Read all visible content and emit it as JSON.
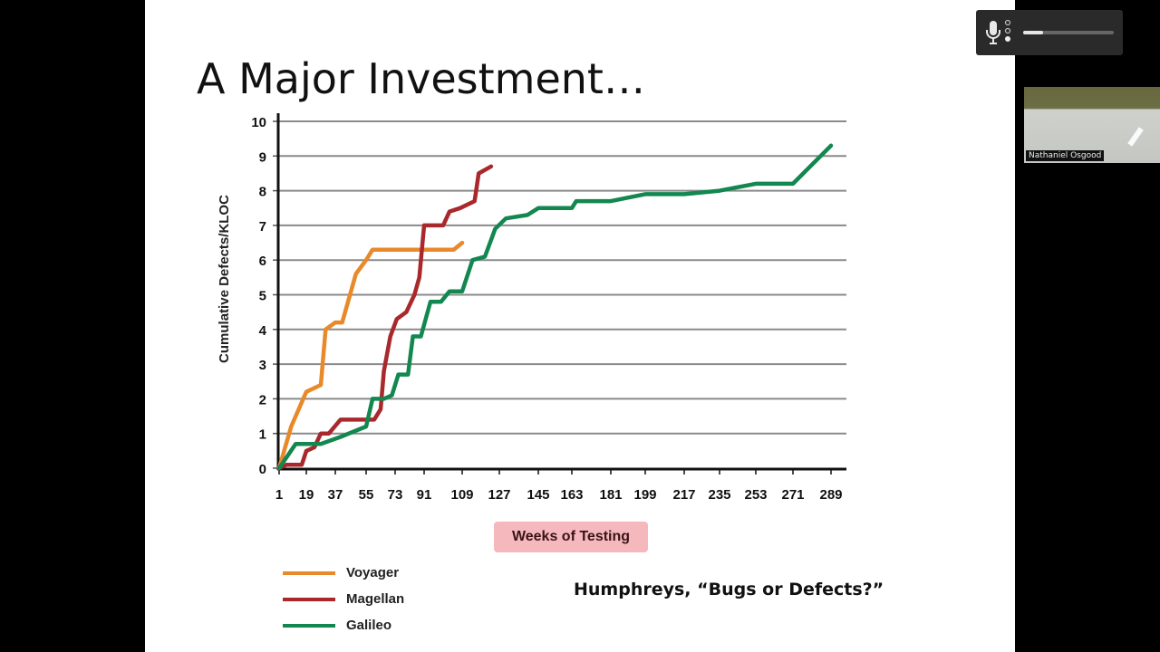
{
  "slide": {
    "title": "A Major Investment…",
    "citation": "Humphreys, “Bugs or Defects?”",
    "x_axis_badge": "Weeks of Testing",
    "badge_color": "#f4b8bd"
  },
  "audio_control": {
    "icon": "microphone-icon",
    "level_percent": 22
  },
  "video_tile": {
    "participant_name": "Nathaniel Osgood"
  },
  "chart_data": {
    "type": "line",
    "title": "",
    "xlabel": "Weeks of Testing",
    "ylabel": "Cumulative Defects/KLOC",
    "ylim": [
      0,
      10
    ],
    "grid": true,
    "legend_position": "bottom-left",
    "x_ticks": [
      1,
      19,
      37,
      55,
      73,
      91,
      109,
      127,
      145,
      163,
      181,
      199,
      217,
      235,
      253,
      271,
      289
    ],
    "y_ticks": [
      0,
      1,
      2,
      3,
      4,
      5,
      6,
      7,
      8,
      9,
      10
    ],
    "legend": [
      "Voyager",
      "Magellan",
      "Galileo"
    ],
    "series": [
      {
        "name": "Voyager",
        "color": "#e8892a",
        "points": [
          [
            1,
            0
          ],
          [
            9,
            1.2
          ],
          [
            19,
            2.2
          ],
          [
            28,
            2.4
          ],
          [
            31,
            4.0
          ],
          [
            37,
            4.2
          ],
          [
            41,
            4.2
          ],
          [
            49,
            5.6
          ],
          [
            55,
            6.0
          ],
          [
            59,
            6.3
          ],
          [
            70,
            6.3
          ],
          [
            91,
            6.3
          ],
          [
            105,
            6.3
          ],
          [
            109,
            6.5
          ]
        ]
      },
      {
        "name": "Magellan",
        "color": "#a8282c",
        "points": [
          [
            1,
            0
          ],
          [
            6,
            0.1
          ],
          [
            16,
            0.1
          ],
          [
            19,
            0.5
          ],
          [
            24,
            0.6
          ],
          [
            28,
            1.0
          ],
          [
            33,
            1.0
          ],
          [
            40,
            1.4
          ],
          [
            47,
            1.4
          ],
          [
            55,
            1.4
          ],
          [
            60,
            1.4
          ],
          [
            64,
            1.7
          ],
          [
            66,
            2.8
          ],
          [
            70,
            3.8
          ],
          [
            74,
            4.3
          ],
          [
            80,
            4.5
          ],
          [
            85,
            5.0
          ],
          [
            88,
            5.5
          ],
          [
            91,
            7.0
          ],
          [
            100,
            7.0
          ],
          [
            103,
            7.4
          ],
          [
            108,
            7.5
          ],
          [
            115,
            7.7
          ],
          [
            117,
            8.5
          ],
          [
            123,
            8.7
          ]
        ]
      },
      {
        "name": "Galileo",
        "color": "#12874f",
        "points": [
          [
            1,
            0
          ],
          [
            12,
            0.7
          ],
          [
            19,
            0.7
          ],
          [
            28,
            0.7
          ],
          [
            40,
            0.9
          ],
          [
            55,
            1.2
          ],
          [
            59,
            2.0
          ],
          [
            66,
            2.0
          ],
          [
            71,
            2.1
          ],
          [
            75,
            2.7
          ],
          [
            81,
            2.7
          ],
          [
            84,
            3.8
          ],
          [
            89,
            3.8
          ],
          [
            94,
            4.8
          ],
          [
            99,
            4.8
          ],
          [
            103,
            5.1
          ],
          [
            109,
            5.1
          ],
          [
            114,
            6.0
          ],
          [
            120,
            6.1
          ],
          [
            125,
            6.9
          ],
          [
            130,
            7.2
          ],
          [
            140,
            7.3
          ],
          [
            145,
            7.5
          ],
          [
            155,
            7.5
          ],
          [
            163,
            7.5
          ],
          [
            165,
            7.7
          ],
          [
            175,
            7.7
          ],
          [
            181,
            7.7
          ],
          [
            199,
            7.9
          ],
          [
            217,
            7.9
          ],
          [
            235,
            8.0
          ],
          [
            253,
            8.2
          ],
          [
            271,
            8.2
          ],
          [
            289,
            9.3
          ]
        ]
      }
    ]
  }
}
